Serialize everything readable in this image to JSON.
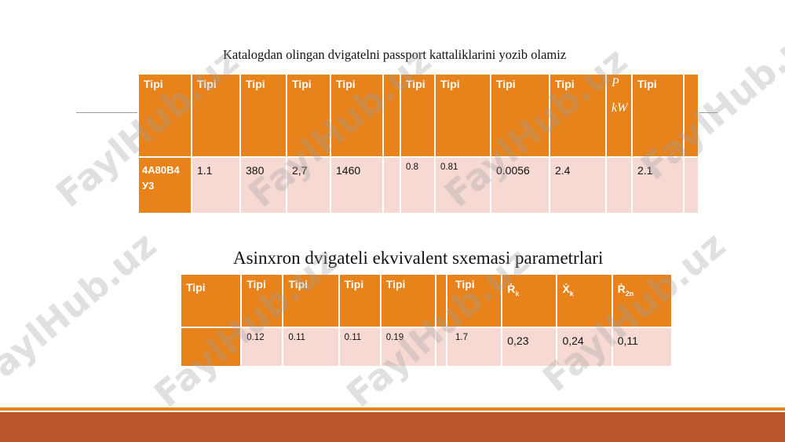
{
  "caption_top": "Katalogdan olingan dvigatelni passport kattaliklarini yozib olamiz",
  "table1": {
    "headers": [
      "Tipi",
      "Tipi",
      "Tipi",
      "Tipi",
      "Tipi",
      "",
      "Tipi",
      "Tipi",
      "Tipi",
      "Tipi",
      "",
      "Tipi",
      ""
    ],
    "partial_header_glyphs": [
      "P",
      "kW"
    ],
    "row": [
      "4A80B4 У3",
      "1.1",
      "380",
      "2,7",
      "1460",
      "",
      "0.8",
      "0.81",
      "0.0056",
      "2.4",
      "",
      "2.1",
      ""
    ]
  },
  "caption_bottom": "Asinxron dvigateli ekvivalent sxemasi parametrlari",
  "table2": {
    "headers": [
      "Tipi",
      "Tipi",
      "Tipi",
      "Tipi",
      "Tipi",
      "",
      "Tipi",
      "Ṙ",
      "Ẋ",
      "Ṙ"
    ],
    "header_subscripts": [
      "k",
      "k",
      "2n"
    ],
    "row": [
      "",
      "0.12",
      "0.11",
      "0.11",
      "0.19",
      "",
      "1.7",
      "0,23",
      "0,24",
      "0,11"
    ]
  },
  "watermark": "FaylHub.uz",
  "colors": {
    "orange": "#e8821a",
    "pink_cell": "#f7d9d3",
    "footer": "#bd562a"
  }
}
